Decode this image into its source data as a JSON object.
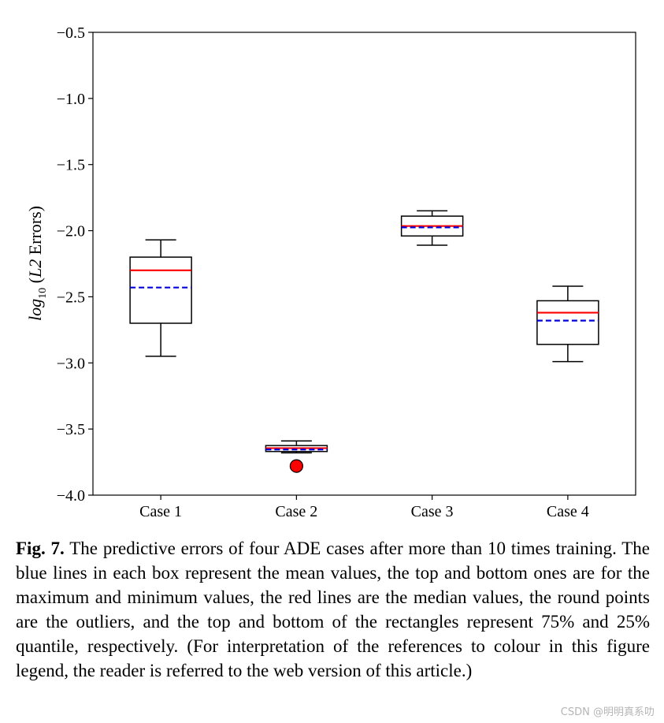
{
  "chart_data": {
    "type": "box",
    "title": "",
    "xlabel": "",
    "ylabel": "log10 (L2 Errors)",
    "ylabel_parts": {
      "base": "log",
      "sub": "10",
      "open": " (",
      "italic": "L2",
      "rest": " Errors)"
    },
    "ylim": [
      -4.0,
      -0.5
    ],
    "yticks": [
      -0.5,
      -1.0,
      -1.5,
      -2.0,
      -2.5,
      -3.0,
      -3.5,
      -4.0
    ],
    "ytick_labels": [
      "−0.5",
      "−1.0",
      "−1.5",
      "−2.0",
      "−2.5",
      "−3.0",
      "−3.5",
      "−4.0"
    ],
    "categories": [
      "Case 1",
      "Case 2",
      "Case 3",
      "Case 4"
    ],
    "boxes": [
      {
        "whisker_low": -2.95,
        "q1": -2.7,
        "median": -2.3,
        "mean": -2.43,
        "q3": -2.2,
        "whisker_high": -2.07,
        "outliers": []
      },
      {
        "whisker_low": -3.68,
        "q1": -3.67,
        "median": -3.645,
        "mean": -3.655,
        "q3": -3.625,
        "whisker_high": -3.59,
        "outliers": [
          -3.78
        ]
      },
      {
        "whisker_low": -2.11,
        "q1": -2.04,
        "median": -1.965,
        "mean": -1.975,
        "q3": -1.89,
        "whisker_high": -1.85,
        "outliers": []
      },
      {
        "whisker_low": -2.99,
        "q1": -2.86,
        "median": -2.62,
        "mean": -2.68,
        "q3": -2.53,
        "whisker_high": -2.42,
        "outliers": []
      }
    ],
    "median_color": "#ff0000",
    "mean_color": "#0000dd",
    "outlier_color": "#ff0000",
    "mean_style": "dashed"
  },
  "caption": {
    "label": "Fig. 7.",
    "text": "The predictive errors of four ADE cases after more than 10 times training. The blue lines in each box represent the mean values, the top and bottom ones are for the maximum and minimum values, the red lines are the median values, the round points are the outliers, and the top and bottom of the rectangles represent 75% and 25% quantile, respectively. (For interpretation of the references to colour in this figure legend, the reader is referred to the web version of this article.)"
  },
  "watermark": "CSDN @明明真系叻"
}
